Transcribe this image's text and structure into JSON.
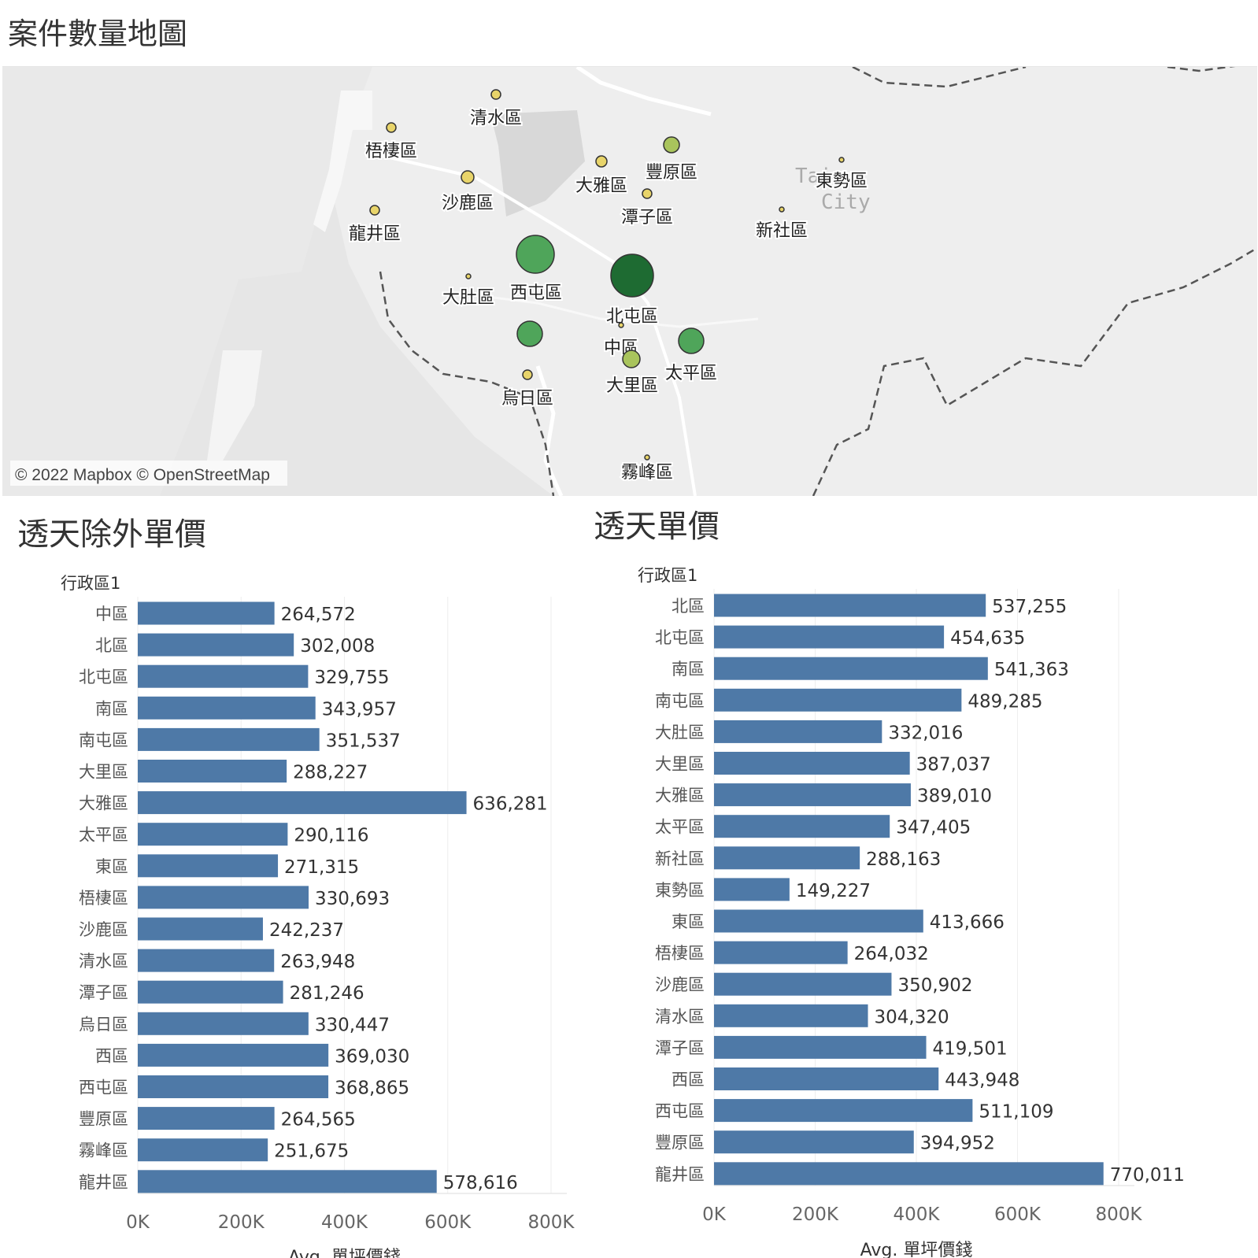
{
  "map": {
    "title": "案件數量地圖",
    "attribution": "© 2022 Mapbox © OpenStreetMap",
    "city_label": [
      "Taic",
      "City"
    ],
    "colors": {
      "low": "#e8d46a",
      "mid": "#a9c45c",
      "high": "#4fa55a",
      "max": "#1e6b32"
    },
    "districts": [
      {
        "name": "清水區",
        "level": "low"
      },
      {
        "name": "梧棲區",
        "level": "low"
      },
      {
        "name": "沙鹿區",
        "level": "low"
      },
      {
        "name": "龍井區",
        "level": "low"
      },
      {
        "name": "大雅區",
        "level": "low"
      },
      {
        "name": "豐原區",
        "level": "mid"
      },
      {
        "name": "潭子區",
        "level": "low"
      },
      {
        "name": "東勢區",
        "level": "low"
      },
      {
        "name": "新社區",
        "level": "low"
      },
      {
        "name": "大肚區",
        "level": "low"
      },
      {
        "name": "西屯區",
        "level": "high"
      },
      {
        "name": "北屯區",
        "level": "max"
      },
      {
        "name": "中區",
        "level": "low"
      },
      {
        "name": "",
        "level": "high"
      },
      {
        "name": "太平區",
        "level": "high"
      },
      {
        "name": "大里區",
        "level": "mid"
      },
      {
        "name": "烏日區",
        "level": "low"
      },
      {
        "name": "霧峰區",
        "level": "low"
      }
    ]
  },
  "left_chart": {
    "title": "透天除外單價",
    "chart_data": {
      "type": "bar",
      "row_header": "行政區1",
      "xlabel": "Avg. 單坪價錢",
      "bar_color": "#4e79a7",
      "xlim": [
        0,
        800000
      ],
      "xticks": [
        0,
        200000,
        400000,
        600000,
        800000
      ],
      "xtick_labels": [
        "0K",
        "200K",
        "400K",
        "600K",
        "800K"
      ],
      "categories": [
        "中區",
        "北區",
        "北屯區",
        "南區",
        "南屯區",
        "大里區",
        "大雅區",
        "太平區",
        "東區",
        "梧棲區",
        "沙鹿區",
        "清水區",
        "潭子區",
        "烏日區",
        "西區",
        "西屯區",
        "豐原區",
        "霧峰區",
        "龍井區"
      ],
      "values": [
        264572,
        302008,
        329755,
        343957,
        351537,
        288227,
        636281,
        290116,
        271315,
        330693,
        242237,
        263948,
        281246,
        330447,
        369030,
        368865,
        264565,
        251675,
        578616
      ],
      "labels": [
        "264,572",
        "302,008",
        "329,755",
        "343,957",
        "351,537",
        "288,227",
        "636,281",
        "290,116",
        "271,315",
        "330,693",
        "242,237",
        "263,948",
        "281,246",
        "330,447",
        "369,030",
        "368,865",
        "264,565",
        "251,675",
        "578,616"
      ]
    }
  },
  "right_chart": {
    "title": "透天單價",
    "chart_data": {
      "type": "bar",
      "row_header": "行政區1",
      "xlabel": "Avg. 單坪價錢",
      "bar_color": "#4e79a7",
      "xlim": [
        0,
        800000
      ],
      "xticks": [
        0,
        200000,
        400000,
        600000,
        800000
      ],
      "xtick_labels": [
        "0K",
        "200K",
        "400K",
        "600K",
        "800K"
      ],
      "categories": [
        "北區",
        "北屯區",
        "南區",
        "南屯區",
        "大肚區",
        "大里區",
        "大雅區",
        "太平區",
        "新社區",
        "東勢區",
        "東區",
        "梧棲區",
        "沙鹿區",
        "清水區",
        "潭子區",
        "西區",
        "西屯區",
        "豐原區",
        "龍井區"
      ],
      "values": [
        537255,
        454635,
        541363,
        489285,
        332016,
        387037,
        389010,
        347405,
        288163,
        149227,
        413666,
        264032,
        350902,
        304320,
        419501,
        443948,
        511109,
        394952,
        770011
      ],
      "labels": [
        "537,255",
        "454,635",
        "541,363",
        "489,285",
        "332,016",
        "387,037",
        "389,010",
        "347,405",
        "288,163",
        "149,227",
        "413,666",
        "264,032",
        "350,902",
        "304,320",
        "419,501",
        "443,948",
        "511,109",
        "394,952",
        "770,011"
      ]
    }
  }
}
